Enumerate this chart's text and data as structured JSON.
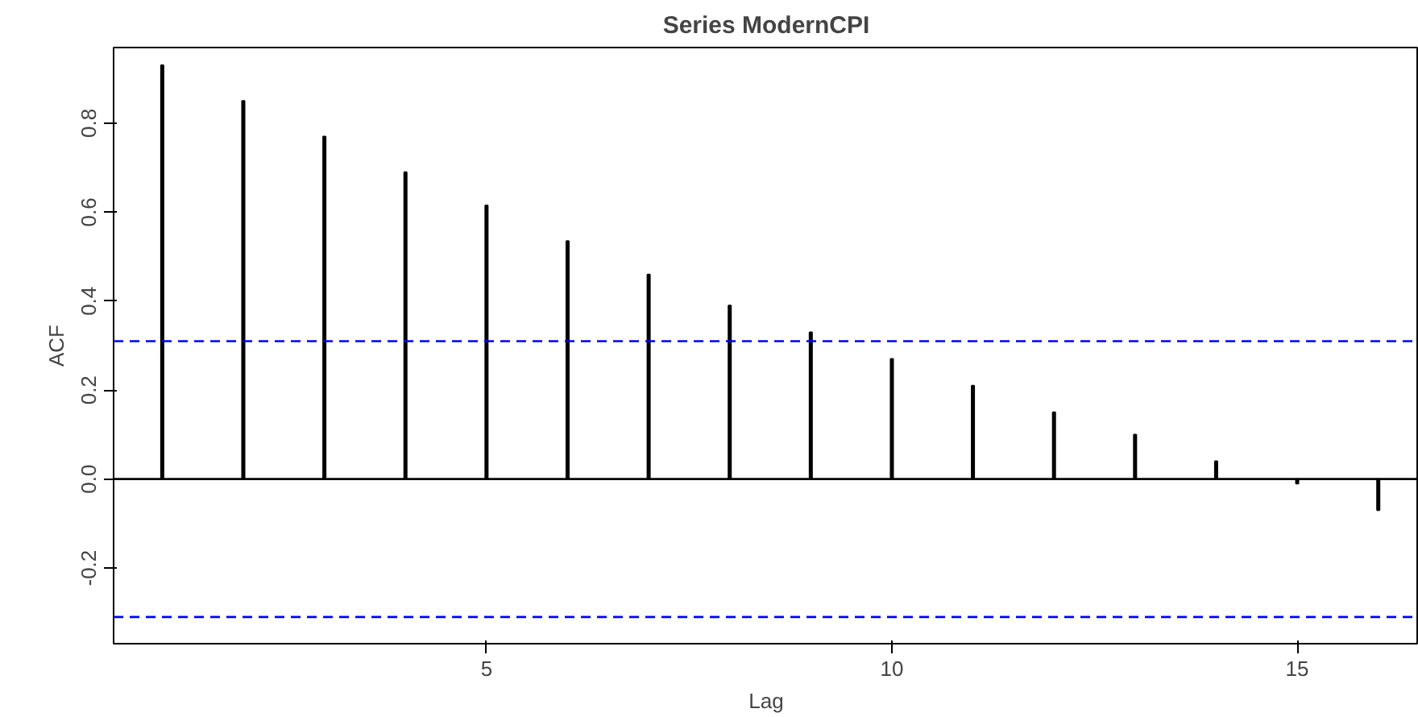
{
  "chart_data": {
    "type": "bar",
    "title": "Series ModernCPI",
    "xlabel": "Lag",
    "ylabel": "ACF",
    "x": [
      1,
      2,
      3,
      4,
      5,
      6,
      7,
      8,
      9,
      10,
      11,
      12,
      13,
      14,
      15,
      16
    ],
    "values": [
      0.93,
      0.85,
      0.77,
      0.69,
      0.615,
      0.535,
      0.46,
      0.39,
      0.33,
      0.27,
      0.21,
      0.15,
      0.1,
      0.04,
      -0.01,
      -0.07
    ],
    "color": "#000000",
    "xlim": [
      0.4,
      16.5
    ],
    "ylim": [
      -0.37,
      0.97
    ],
    "xticks": [
      5,
      10,
      15
    ],
    "yticks": [
      {
        "value": -0.2,
        "label": "-0.2"
      },
      {
        "value": 0,
        "label": "0.0"
      },
      {
        "value": 0.2,
        "label": "0.2"
      },
      {
        "value": 0.4,
        "label": "0.4"
      },
      {
        "value": 0.6,
        "label": "0.6"
      },
      {
        "value": 0.8,
        "label": "0.8"
      }
    ],
    "ref_lines": [
      {
        "axis": "y",
        "value": 0,
        "color": "#000000",
        "line_style": "solid"
      },
      {
        "axis": "y",
        "value": 0.31,
        "color": "#0000ff",
        "line_style": "dashed"
      },
      {
        "axis": "y",
        "value": -0.31,
        "color": "#0000ff",
        "line_style": "dashed"
      }
    ],
    "grid": false
  }
}
